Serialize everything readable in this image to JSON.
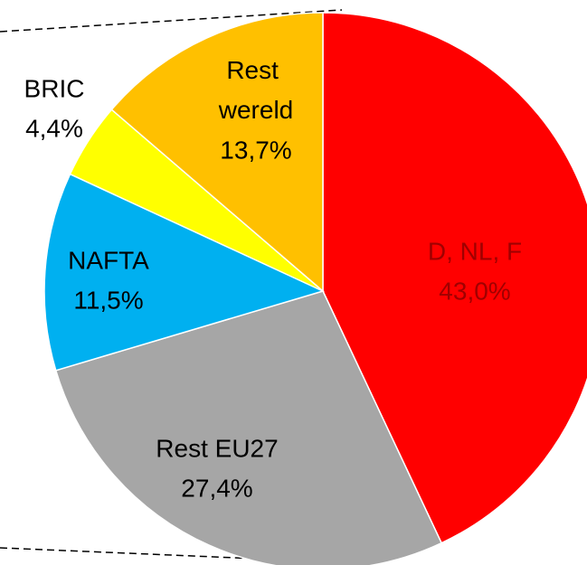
{
  "chart_data": {
    "type": "pie",
    "categories": [
      "D, NL, F",
      "Rest EU27",
      "NAFTA",
      "BRIC",
      "Rest wereld"
    ],
    "values": [
      43.0,
      27.4,
      11.5,
      4.4,
      13.7
    ],
    "value_labels": [
      "43,0%",
      "27,4%",
      "11,5%",
      "4,4%",
      "13,7%"
    ],
    "colors": [
      "#ff0000",
      "#a6a6a6",
      "#00b0f0",
      "#ffff00",
      "#ffc000"
    ]
  }
}
